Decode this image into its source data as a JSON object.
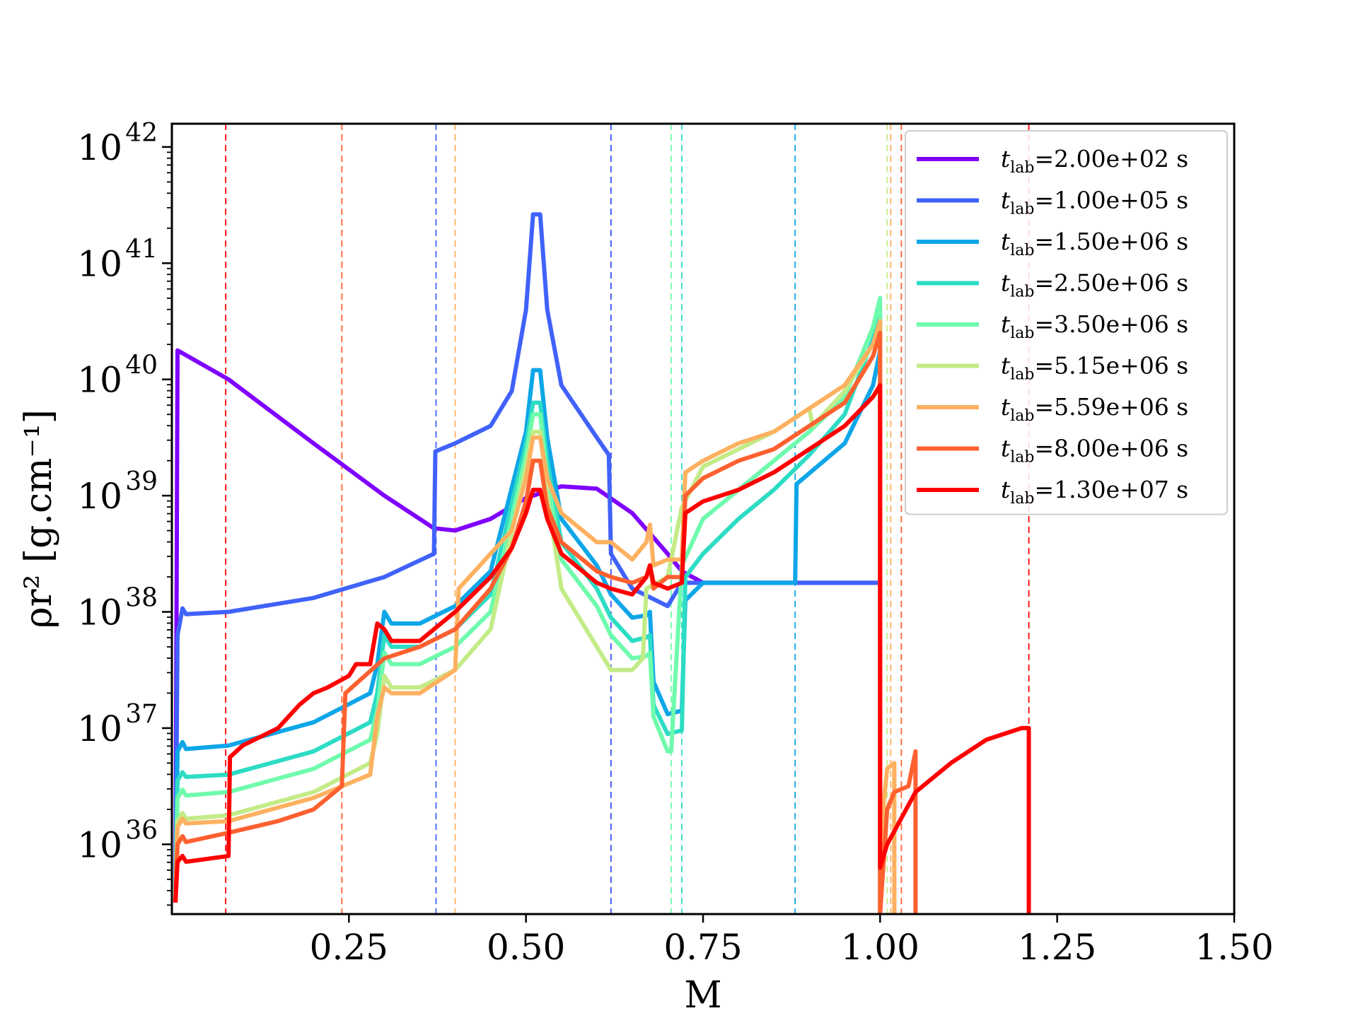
{
  "chart_data": {
    "type": "line",
    "title": "",
    "xlabel": "M",
    "ylabel": "ρr² [g.cm⁻¹]",
    "xlim": [
      0.0,
      1.5
    ],
    "ylim_log10": [
      35.4,
      42.2
    ],
    "yscale": "log",
    "xticks": [
      0.25,
      0.5,
      0.75,
      1.0,
      1.25,
      1.5
    ],
    "xtick_labels": [
      "0.25",
      "0.50",
      "0.75",
      "1.00",
      "1.25",
      "1.50"
    ],
    "ytick_exponents": [
      36,
      37,
      38,
      39,
      40,
      41,
      42
    ],
    "ytick_base": "10",
    "legend_position": "top-right",
    "legend_prefix": "t",
    "legend_subscript": "lab",
    "series": [
      {
        "name": "=2.00e+02 s",
        "color": "#7f00ff",
        "x": [
          0.005,
          0.008,
          0.08,
          0.2,
          0.3,
          0.37,
          0.4,
          0.45,
          0.5,
          0.55,
          0.6,
          0.65,
          0.7,
          0.72,
          0.75,
          1.0
        ],
        "y": [
          35.5,
          40.25,
          40.0,
          39.45,
          39.0,
          38.72,
          38.7,
          38.8,
          38.98,
          39.08,
          39.06,
          38.85,
          38.5,
          38.35,
          38.25,
          38.25
        ],
        "shock_x": [
          0.62
        ]
      },
      {
        "name": "=1.00e+05 s",
        "color": "#4062fa",
        "x": [
          0.005,
          0.008,
          0.015,
          0.02,
          0.08,
          0.2,
          0.3,
          0.37,
          0.372,
          0.4,
          0.45,
          0.48,
          0.5,
          0.51,
          0.52,
          0.53,
          0.55,
          0.6,
          0.617,
          0.62,
          0.65,
          0.7,
          0.72,
          0.75,
          0.88,
          0.9,
          1.0
        ],
        "y": [
          35.5,
          37.8,
          38.03,
          37.98,
          38.0,
          38.12,
          38.3,
          38.5,
          39.38,
          39.45,
          39.6,
          39.9,
          40.6,
          41.42,
          41.42,
          40.6,
          39.95,
          39.5,
          39.35,
          38.5,
          38.2,
          38.05,
          38.25,
          38.25,
          38.25,
          38.25,
          38.25
        ],
        "shock_x": [
          0.373,
          0.62
        ]
      },
      {
        "name": "=1.50e+06 s",
        "color": "#0ea6e8",
        "x": [
          0.005,
          0.008,
          0.015,
          0.02,
          0.08,
          0.2,
          0.28,
          0.29,
          0.3,
          0.31,
          0.35,
          0.4,
          0.45,
          0.5,
          0.51,
          0.52,
          0.53,
          0.55,
          0.6,
          0.62,
          0.65,
          0.67,
          0.675,
          0.68,
          0.7,
          0.72,
          0.725,
          0.75,
          0.85,
          0.88,
          0.882,
          0.95,
          0.99,
          1.0,
          1.0
        ],
        "y": [
          35.5,
          36.8,
          36.88,
          36.82,
          36.85,
          37.05,
          37.3,
          37.55,
          38.0,
          37.9,
          37.9,
          38.05,
          38.35,
          39.55,
          40.08,
          40.08,
          39.5,
          38.8,
          38.4,
          38.15,
          37.95,
          37.97,
          38.0,
          37.4,
          37.12,
          37.15,
          38.1,
          38.25,
          38.25,
          38.25,
          39.1,
          39.45,
          39.95,
          40.25,
          35.4
        ],
        "shock_x": [
          0.88
        ]
      },
      {
        "name": "=2.50e+06 s",
        "color": "#2ddcc4",
        "x": [
          0.005,
          0.008,
          0.015,
          0.02,
          0.08,
          0.2,
          0.28,
          0.29,
          0.3,
          0.31,
          0.35,
          0.4,
          0.45,
          0.5,
          0.51,
          0.52,
          0.53,
          0.55,
          0.6,
          0.62,
          0.65,
          0.67,
          0.675,
          0.68,
          0.7,
          0.72,
          0.725,
          0.75,
          0.8,
          0.85,
          0.9,
          0.95,
          0.99,
          1.0,
          1.0
        ],
        "y": [
          35.5,
          36.55,
          36.62,
          36.58,
          36.6,
          36.8,
          37.05,
          37.3,
          37.8,
          37.7,
          37.7,
          37.85,
          38.15,
          39.45,
          39.8,
          39.8,
          39.3,
          38.6,
          38.2,
          37.95,
          37.75,
          37.78,
          37.8,
          37.2,
          36.95,
          36.98,
          38.3,
          38.5,
          38.8,
          39.05,
          39.35,
          39.7,
          40.35,
          40.6,
          35.4
        ],
        "shock_x": [
          0.72
        ]
      },
      {
        "name": "=3.50e+06 s",
        "color": "#6ffbad",
        "x": [
          0.005,
          0.008,
          0.015,
          0.02,
          0.08,
          0.2,
          0.28,
          0.29,
          0.3,
          0.31,
          0.35,
          0.4,
          0.45,
          0.5,
          0.51,
          0.52,
          0.53,
          0.55,
          0.6,
          0.62,
          0.65,
          0.67,
          0.675,
          0.68,
          0.7,
          0.705,
          0.72,
          0.75,
          0.8,
          0.85,
          0.9,
          0.95,
          0.99,
          1.0,
          1.0
        ],
        "y": [
          35.5,
          36.4,
          36.47,
          36.42,
          36.45,
          36.65,
          36.9,
          37.15,
          37.65,
          37.55,
          37.55,
          37.7,
          38.0,
          39.35,
          39.7,
          39.7,
          39.15,
          38.45,
          38.05,
          37.8,
          37.6,
          37.62,
          37.65,
          37.1,
          36.8,
          36.8,
          38.4,
          38.8,
          39.05,
          39.3,
          39.55,
          39.85,
          40.45,
          40.7,
          35.4
        ],
        "shock_x": [
          0.705
        ]
      },
      {
        "name": "=5.15e+06 s",
        "color": "#c3eb87",
        "x": [
          0.005,
          0.008,
          0.015,
          0.02,
          0.08,
          0.2,
          0.28,
          0.29,
          0.3,
          0.31,
          0.35,
          0.4,
          0.45,
          0.5,
          0.51,
          0.52,
          0.53,
          0.55,
          0.6,
          0.62,
          0.65,
          0.665,
          0.67,
          0.7,
          0.705,
          0.72,
          0.75,
          0.8,
          0.85,
          0.9,
          0.905,
          0.95,
          0.99,
          1.0,
          1.0
        ],
        "y": [
          35.5,
          36.2,
          36.27,
          36.22,
          36.25,
          36.45,
          36.7,
          36.95,
          37.45,
          37.35,
          37.35,
          37.5,
          37.85,
          39.25,
          39.55,
          39.55,
          39.0,
          38.2,
          37.7,
          37.5,
          37.5,
          37.6,
          38.2,
          38.3,
          38.45,
          38.9,
          39.25,
          39.4,
          39.55,
          39.75,
          39.6,
          39.9,
          40.3,
          40.5,
          35.4
        ],
        "shock_x": [
          1.01
        ]
      },
      {
        "name": "=5.59e+06 s",
        "color": "#fdb160",
        "x": [
          0.005,
          0.008,
          0.015,
          0.02,
          0.08,
          0.2,
          0.28,
          0.29,
          0.3,
          0.31,
          0.35,
          0.4,
          0.405,
          0.45,
          0.48,
          0.5,
          0.51,
          0.52,
          0.53,
          0.55,
          0.6,
          0.62,
          0.65,
          0.67,
          0.675,
          0.68,
          0.7,
          0.72,
          0.725,
          0.75,
          0.8,
          0.85,
          0.9,
          0.95,
          0.99,
          1.0,
          1.0,
          1.005,
          1.01,
          1.02,
          1.02
        ],
        "y": [
          35.5,
          36.15,
          36.22,
          36.18,
          36.2,
          36.4,
          36.6,
          37.1,
          37.35,
          37.3,
          37.3,
          37.5,
          38.2,
          38.5,
          38.7,
          39.15,
          39.5,
          39.5,
          39.15,
          38.85,
          38.6,
          38.6,
          38.45,
          38.6,
          38.75,
          38.4,
          38.45,
          38.45,
          39.2,
          39.3,
          39.45,
          39.55,
          39.75,
          39.95,
          40.3,
          40.5,
          35.4,
          36.35,
          36.65,
          36.7,
          35.4
        ],
        "shock_x": [
          0.4,
          1.015
        ]
      },
      {
        "name": "=8.00e+06 s",
        "color": "#ff6030",
        "x": [
          0.005,
          0.008,
          0.015,
          0.02,
          0.08,
          0.15,
          0.2,
          0.24,
          0.245,
          0.3,
          0.35,
          0.4,
          0.45,
          0.48,
          0.5,
          0.51,
          0.52,
          0.53,
          0.55,
          0.6,
          0.62,
          0.65,
          0.67,
          0.675,
          0.68,
          0.7,
          0.72,
          0.725,
          0.75,
          0.8,
          0.85,
          0.9,
          0.95,
          0.99,
          1.0,
          1.0,
          1.01,
          1.02,
          1.04,
          1.05,
          1.05
        ],
        "y": [
          35.5,
          36.0,
          36.07,
          36.02,
          36.1,
          36.2,
          36.3,
          36.5,
          37.3,
          37.6,
          37.7,
          37.85,
          38.2,
          38.55,
          38.95,
          39.3,
          39.3,
          38.9,
          38.6,
          38.35,
          38.3,
          38.25,
          38.3,
          38.4,
          38.2,
          38.3,
          38.3,
          39.0,
          39.15,
          39.3,
          39.4,
          39.6,
          39.8,
          40.2,
          40.4,
          35.4,
          36.3,
          36.45,
          36.5,
          36.8,
          35.4
        ],
        "shock_x": [
          0.24,
          1.03
        ]
      },
      {
        "name": "=1.30e+07 s",
        "color": "#ff0000",
        "x": [
          0.005,
          0.008,
          0.015,
          0.02,
          0.08,
          0.082,
          0.1,
          0.15,
          0.18,
          0.2,
          0.22,
          0.25,
          0.26,
          0.28,
          0.29,
          0.3,
          0.31,
          0.35,
          0.4,
          0.45,
          0.48,
          0.5,
          0.51,
          0.52,
          0.53,
          0.55,
          0.6,
          0.62,
          0.65,
          0.67,
          0.675,
          0.68,
          0.7,
          0.72,
          0.725,
          0.75,
          0.8,
          0.85,
          0.9,
          0.95,
          0.99,
          1.0,
          1.0,
          1.01,
          1.05,
          1.1,
          1.15,
          1.2,
          1.21,
          1.21
        ],
        "y": [
          35.5,
          35.85,
          35.9,
          35.85,
          35.9,
          36.75,
          36.85,
          37.0,
          37.2,
          37.3,
          37.35,
          37.45,
          37.55,
          37.55,
          37.9,
          37.85,
          37.75,
          37.75,
          38.0,
          38.3,
          38.55,
          38.85,
          39.05,
          39.05,
          38.8,
          38.5,
          38.25,
          38.2,
          38.15,
          38.3,
          38.4,
          38.25,
          38.2,
          38.25,
          38.85,
          38.95,
          39.05,
          39.2,
          39.4,
          39.6,
          39.85,
          39.95,
          35.8,
          36.0,
          36.45,
          36.7,
          36.9,
          37.0,
          37.0,
          35.4
        ],
        "shock_x": [
          0.076,
          1.21
        ]
      }
    ]
  }
}
